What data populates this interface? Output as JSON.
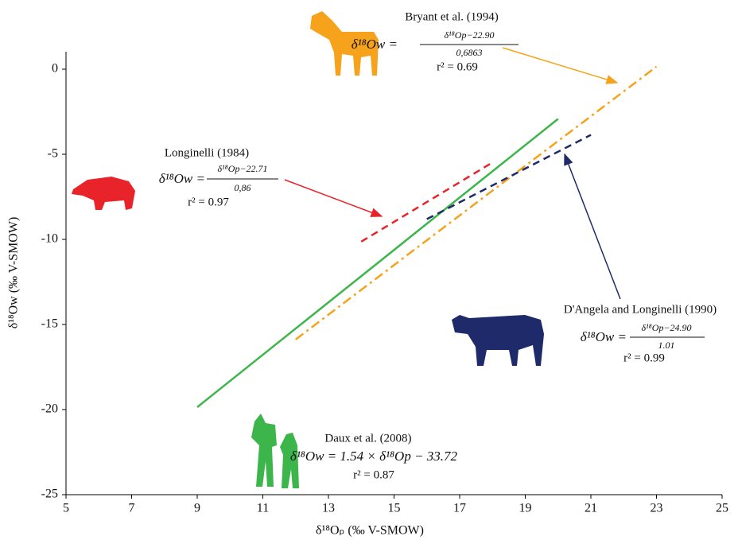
{
  "chart_data": {
    "type": "line",
    "xlabel": "δ¹⁸Oₚ (‰ V-SMOW)",
    "ylabel": "δ¹⁸Ow (‰ V-SMOW)",
    "xlim": [
      5,
      25
    ],
    "xticks": [
      5,
      7,
      9,
      11,
      13,
      15,
      17,
      19,
      21,
      23,
      25
    ],
    "ylim": [
      -25,
      1
    ],
    "yticks": [
      0,
      -5,
      -10,
      -15,
      -20,
      -25
    ],
    "series": [
      {
        "name": "Daux et al. (2008)",
        "color": "#3cb54a",
        "style": "solid",
        "x": [
          9,
          20
        ],
        "values": [
          -19.86,
          -2.92
        ],
        "equation": "δ¹⁸Ow = 1.54 × δ¹⁸Op − 33.72",
        "r2": "r² = 0.87"
      },
      {
        "name": "Bryant et al. (1994)",
        "color": "#f7a21b",
        "style": "dashdot",
        "x": [
          12,
          23
        ],
        "values": [
          -15.88,
          0.15
        ],
        "lhs": "δ¹⁸Ow =",
        "numerator": "δ¹⁸Op−22.90",
        "denominator": "0,6863",
        "r2": "r² = 0.69"
      },
      {
        "name": "Longinelli (1984)",
        "color": "#e8232a",
        "style": "dashed",
        "x": [
          14,
          18
        ],
        "values": [
          -10.13,
          -5.48
        ],
        "lhs": "δ¹⁸Ow =",
        "numerator": "δ¹⁸Op−22.71",
        "denominator": "0,86",
        "r2": "r² = 0.97"
      },
      {
        "name": "D'Angela and Longinelli (1990)",
        "color": "#1f2a6b",
        "style": "dashed",
        "x": [
          16,
          21
        ],
        "values": [
          -8.81,
          -3.86
        ],
        "lhs": "δ¹⁸Ow =",
        "numerator": "δ¹⁸Op−24.90",
        "denominator": "1.01",
        "r2": "r² = 0.99"
      }
    ]
  }
}
